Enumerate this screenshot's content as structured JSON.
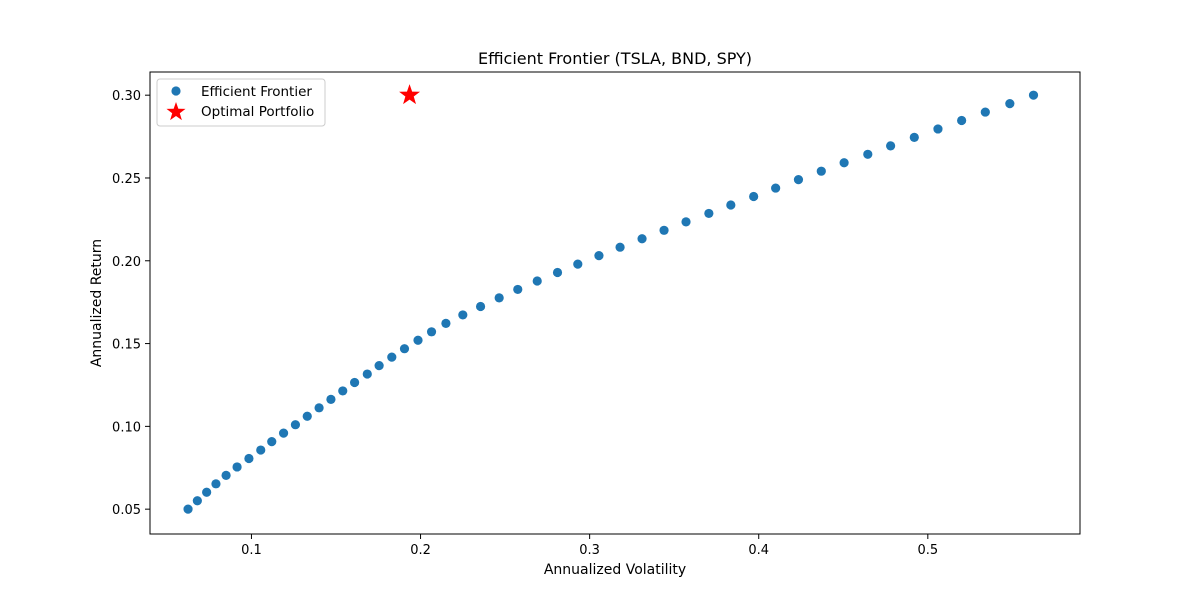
{
  "chart_data": {
    "type": "scatter",
    "title": "Efficient Frontier (TSLA, BND, SPY)",
    "xlabel": "Annualized Volatility",
    "ylabel": "Annualized Return",
    "xlim": [
      0.04,
      0.59
    ],
    "ylim": [
      0.035,
      0.314
    ],
    "xticks": [
      0.1,
      0.2,
      0.3,
      0.4,
      0.5
    ],
    "xtick_labels": [
      "0.1",
      "0.2",
      "0.3",
      "0.4",
      "0.5"
    ],
    "yticks": [
      0.05,
      0.1,
      0.15,
      0.2,
      0.25,
      0.3
    ],
    "ytick_labels": [
      "0.05",
      "0.10",
      "0.15",
      "0.20",
      "0.25",
      "0.30"
    ],
    "grid": false,
    "legend_position": "top-left",
    "series": [
      {
        "name": "Efficient Frontier",
        "marker": "circle",
        "color": "#1f77b4",
        "x": [
          0.0625,
          0.068,
          0.0735,
          0.079,
          0.085,
          0.0915,
          0.0985,
          0.1055,
          0.112,
          0.119,
          0.126,
          0.133,
          0.14,
          0.147,
          0.154,
          0.161,
          0.1685,
          0.1755,
          0.183,
          0.1905,
          0.1985,
          0.2065,
          0.215,
          0.225,
          0.2355,
          0.2465,
          0.2575,
          0.269,
          0.281,
          0.293,
          0.3055,
          0.318,
          0.331,
          0.344,
          0.357,
          0.3705,
          0.3835,
          0.397,
          0.41,
          0.4235,
          0.437,
          0.4505,
          0.4645,
          0.478,
          0.492,
          0.506,
          0.52,
          0.534,
          0.5485,
          0.5625
        ],
        "y": [
          0.05,
          0.0551,
          0.0602,
          0.0653,
          0.0704,
          0.0755,
          0.0806,
          0.0857,
          0.0908,
          0.0959,
          0.101,
          0.1061,
          0.1112,
          0.1163,
          0.1214,
          0.1265,
          0.1316,
          0.1367,
          0.1418,
          0.1469,
          0.152,
          0.1571,
          0.1622,
          0.1673,
          0.1724,
          0.1776,
          0.1827,
          0.1878,
          0.1929,
          0.198,
          0.2031,
          0.2082,
          0.2133,
          0.2184,
          0.2235,
          0.2286,
          0.2337,
          0.2388,
          0.2439,
          0.249,
          0.2541,
          0.2592,
          0.2643,
          0.2694,
          0.2745,
          0.2796,
          0.2847,
          0.2898,
          0.2949,
          0.3
        ]
      },
      {
        "name": "Optimal Portfolio",
        "marker": "star",
        "color": "#ff0000",
        "x": [
          0.1935
        ],
        "y": [
          0.3
        ]
      }
    ]
  }
}
